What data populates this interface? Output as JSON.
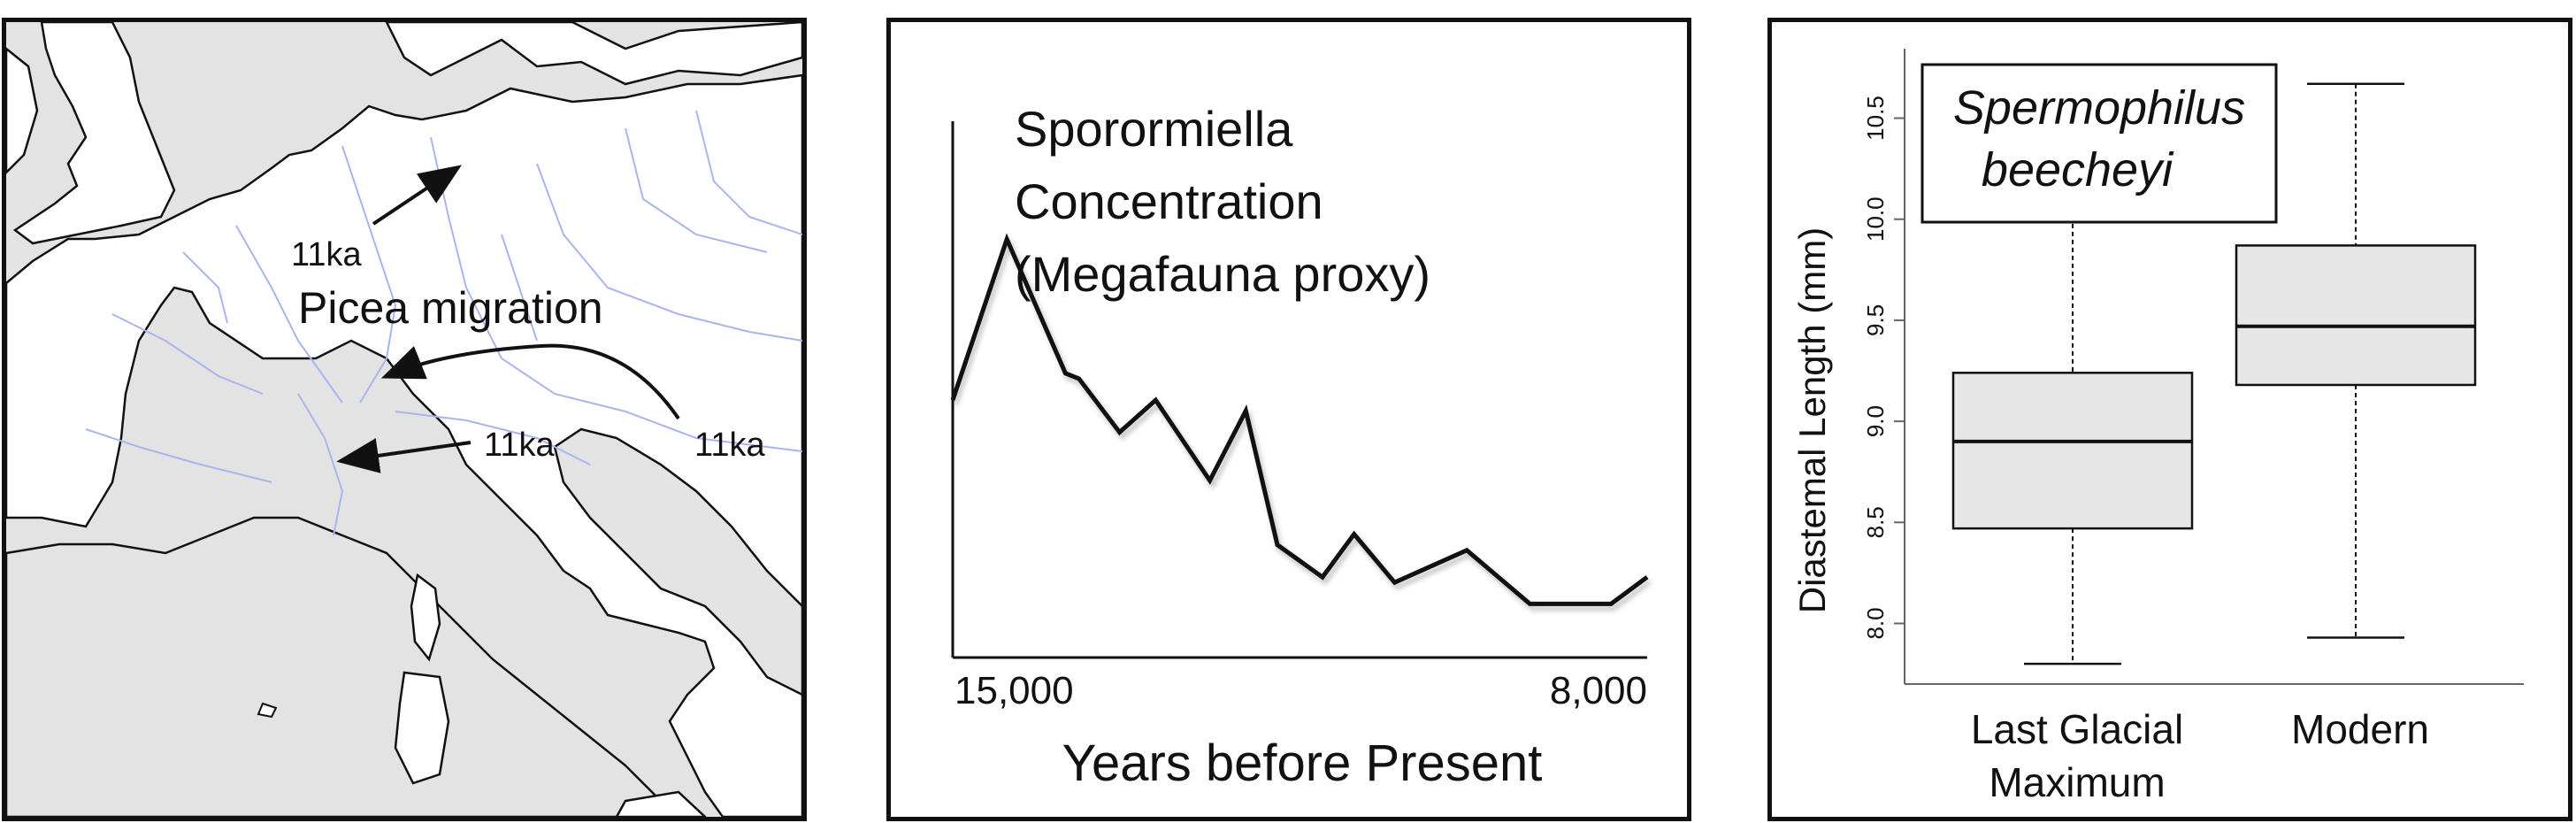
{
  "map": {
    "title": "Picea migration",
    "arrow_labels": [
      "11ka",
      "11ka",
      "11ka"
    ],
    "colors": {
      "land": "#ffffff",
      "sea": "#e3e3e3",
      "rivers": "#aab4f0",
      "coast": "#111111"
    }
  },
  "chart_data": [
    {
      "type": "line",
      "title": "Sporormiella\nConcentration\n(Megafauna proxy)",
      "xlabel": "Years before Present",
      "ylabel": "",
      "x_tick_labels": [
        "15,000",
        "8,000"
      ],
      "x": [
        15600,
        15000,
        14350,
        14200,
        13750,
        13350,
        12750,
        12350,
        12000,
        11500,
        11150,
        10700,
        9900,
        9200,
        8300,
        7900
      ],
      "y": [
        0.48,
        0.78,
        0.53,
        0.52,
        0.42,
        0.48,
        0.33,
        0.46,
        0.21,
        0.15,
        0.23,
        0.14,
        0.2,
        0.1,
        0.1,
        0.15
      ],
      "xlim": [
        15600,
        7900
      ],
      "ylim": [
        0,
        1
      ],
      "grid": false,
      "legend": "none"
    },
    {
      "type": "box",
      "title": "Spermophilus\nbeecheyi",
      "xlabel": "",
      "ylabel": "Diastemal Length (mm)",
      "categories": [
        "Last Glacial\nMaximum",
        "Modern"
      ],
      "boxes": [
        {
          "category": "Last Glacial\nMaximum",
          "min": 7.8,
          "q1": 8.47,
          "median": 8.9,
          "q3": 9.24,
          "max": 10.45
        },
        {
          "category": "Modern",
          "min": 7.93,
          "q1": 9.18,
          "median": 9.47,
          "q3": 9.87,
          "max": 10.67
        }
      ],
      "y_ticks": [
        8.0,
        8.5,
        9.0,
        9.5,
        10.0,
        10.5
      ],
      "y_tick_labels": [
        "8.0",
        "8.5",
        "9.0",
        "9.5",
        "10.0",
        "10.5"
      ],
      "ylim": [
        7.7,
        10.8
      ],
      "box_color": "#e6e6e6",
      "grid": false,
      "legend": "top-left"
    }
  ]
}
